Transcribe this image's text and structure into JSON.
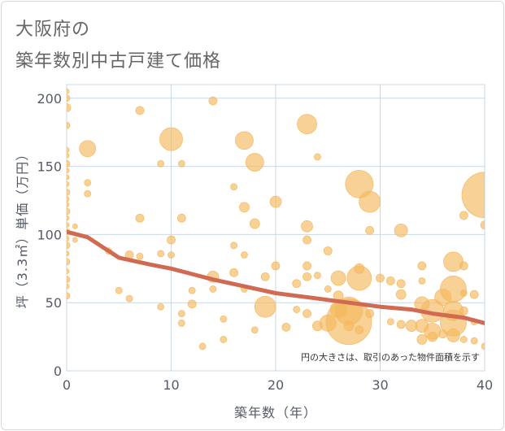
{
  "title": {
    "line1": "大阪府の",
    "line2": "築年数別中古戸建て価格"
  },
  "note": "円の大きさは、取引のあった物件面積を示す",
  "colors": {
    "bubble": "#f5b95e",
    "trend": "#d06a52",
    "grid": "#c9d9e6",
    "plot_bg": "#ffffff"
  },
  "chart_data": {
    "type": "scatter",
    "xlabel": "築年数（年）",
    "ylabel": "坪（3.3㎡）単価（万円）",
    "xlim": [
      0,
      40
    ],
    "ylim": [
      0,
      210
    ],
    "xticks": [
      0,
      10,
      20,
      30,
      40
    ],
    "yticks": [
      0,
      50,
      100,
      150,
      200
    ],
    "grid": true,
    "points": [
      {
        "x": 0,
        "y": 205,
        "size": 3
      },
      {
        "x": 0,
        "y": 200,
        "size": 4
      },
      {
        "x": 0,
        "y": 193,
        "size": 5
      },
      {
        "x": 0,
        "y": 180,
        "size": 4
      },
      {
        "x": 0,
        "y": 162,
        "size": 3
      },
      {
        "x": 0,
        "y": 158,
        "size": 3
      },
      {
        "x": 0,
        "y": 152,
        "size": 4
      },
      {
        "x": 0,
        "y": 147,
        "size": 3
      },
      {
        "x": 0,
        "y": 142,
        "size": 3
      },
      {
        "x": 0,
        "y": 137,
        "size": 3
      },
      {
        "x": 0,
        "y": 131,
        "size": 4
      },
      {
        "x": 0,
        "y": 126,
        "size": 3
      },
      {
        "x": 0,
        "y": 122,
        "size": 3
      },
      {
        "x": 0,
        "y": 117,
        "size": 4
      },
      {
        "x": 0,
        "y": 112,
        "size": 3
      },
      {
        "x": 0,
        "y": 107,
        "size": 3
      },
      {
        "x": 0,
        "y": 102,
        "size": 4
      },
      {
        "x": 0,
        "y": 97,
        "size": 3
      },
      {
        "x": 0,
        "y": 92,
        "size": 4
      },
      {
        "x": 0,
        "y": 86,
        "size": 3
      },
      {
        "x": 0,
        "y": 80,
        "size": 4
      },
      {
        "x": 0,
        "y": 73,
        "size": 3
      },
      {
        "x": 0,
        "y": 67,
        "size": 4
      },
      {
        "x": 0,
        "y": 62,
        "size": 3
      },
      {
        "x": 0,
        "y": 55,
        "size": 4
      },
      {
        "x": 0.8,
        "y": 106,
        "size": 3
      },
      {
        "x": 0.8,
        "y": 96,
        "size": 3
      },
      {
        "x": 2,
        "y": 163,
        "size": 10
      },
      {
        "x": 2,
        "y": 138,
        "size": 4
      },
      {
        "x": 2,
        "y": 130,
        "size": 4
      },
      {
        "x": 4,
        "y": 88,
        "size": 4
      },
      {
        "x": 5,
        "y": 59,
        "size": 4
      },
      {
        "x": 6,
        "y": 85,
        "size": 5
      },
      {
        "x": 6,
        "y": 53,
        "size": 4
      },
      {
        "x": 7,
        "y": 191,
        "size": 5
      },
      {
        "x": 7,
        "y": 112,
        "size": 5
      },
      {
        "x": 7,
        "y": 84,
        "size": 4
      },
      {
        "x": 9,
        "y": 152,
        "size": 4
      },
      {
        "x": 9,
        "y": 86,
        "size": 4
      },
      {
        "x": 9,
        "y": 47,
        "size": 4
      },
      {
        "x": 10,
        "y": 170,
        "size": 14
      },
      {
        "x": 10,
        "y": 96,
        "size": 5
      },
      {
        "x": 10,
        "y": 85,
        "size": 4
      },
      {
        "x": 11,
        "y": 152,
        "size": 4
      },
      {
        "x": 11,
        "y": 112,
        "size": 5
      },
      {
        "x": 11,
        "y": 42,
        "size": 4
      },
      {
        "x": 11,
        "y": 35,
        "size": 4
      },
      {
        "x": 12,
        "y": 59,
        "size": 4
      },
      {
        "x": 12,
        "y": 49,
        "size": 5
      },
      {
        "x": 13,
        "y": 18,
        "size": 4
      },
      {
        "x": 14,
        "y": 198,
        "size": 5
      },
      {
        "x": 14,
        "y": 69,
        "size": 7
      },
      {
        "x": 14,
        "y": 60,
        "size": 4
      },
      {
        "x": 15,
        "y": 38,
        "size": 4
      },
      {
        "x": 15,
        "y": 23,
        "size": 4
      },
      {
        "x": 16,
        "y": 135,
        "size": 4
      },
      {
        "x": 16,
        "y": 92,
        "size": 4
      },
      {
        "x": 16,
        "y": 72,
        "size": 5
      },
      {
        "x": 17,
        "y": 169,
        "size": 11
      },
      {
        "x": 17,
        "y": 120,
        "size": 6
      },
      {
        "x": 17,
        "y": 85,
        "size": 4
      },
      {
        "x": 17,
        "y": 60,
        "size": 4
      },
      {
        "x": 18,
        "y": 153,
        "size": 11
      },
      {
        "x": 18,
        "y": 108,
        "size": 6
      },
      {
        "x": 18,
        "y": 30,
        "size": 4
      },
      {
        "x": 19,
        "y": 69,
        "size": 5
      },
      {
        "x": 19,
        "y": 47,
        "size": 13
      },
      {
        "x": 20,
        "y": 124,
        "size": 7
      },
      {
        "x": 20,
        "y": 77,
        "size": 5
      },
      {
        "x": 21,
        "y": 32,
        "size": 5
      },
      {
        "x": 22,
        "y": 64,
        "size": 5
      },
      {
        "x": 22,
        "y": 45,
        "size": 4
      },
      {
        "x": 23,
        "y": 181,
        "size": 12
      },
      {
        "x": 23,
        "y": 106,
        "size": 7
      },
      {
        "x": 23,
        "y": 96,
        "size": 5
      },
      {
        "x": 23,
        "y": 77,
        "size": 5
      },
      {
        "x": 23,
        "y": 69,
        "size": 5
      },
      {
        "x": 23,
        "y": 42,
        "size": 5
      },
      {
        "x": 24,
        "y": 157,
        "size": 4
      },
      {
        "x": 24,
        "y": 70,
        "size": 4
      },
      {
        "x": 24,
        "y": 33,
        "size": 6
      },
      {
        "x": 25,
        "y": 88,
        "size": 5
      },
      {
        "x": 25,
        "y": 60,
        "size": 4
      },
      {
        "x": 25,
        "y": 35,
        "size": 10
      },
      {
        "x": 26,
        "y": 68,
        "size": 9
      },
      {
        "x": 26,
        "y": 55,
        "size": 6
      },
      {
        "x": 26,
        "y": 45,
        "size": 10
      },
      {
        "x": 27,
        "y": 44,
        "size": 17
      },
      {
        "x": 27,
        "y": 36,
        "size": 28
      },
      {
        "x": 27,
        "y": 33,
        "size": 6
      },
      {
        "x": 28,
        "y": 137,
        "size": 17
      },
      {
        "x": 28,
        "y": 75,
        "size": 6
      },
      {
        "x": 28,
        "y": 68,
        "size": 15
      },
      {
        "x": 28,
        "y": 30,
        "size": 5
      },
      {
        "x": 29,
        "y": 124,
        "size": 13
      },
      {
        "x": 29,
        "y": 103,
        "size": 5
      },
      {
        "x": 29,
        "y": 42,
        "size": 5
      },
      {
        "x": 30,
        "y": 68,
        "size": 5
      },
      {
        "x": 31,
        "y": 66,
        "size": 5
      },
      {
        "x": 31,
        "y": 36,
        "size": 4
      },
      {
        "x": 32,
        "y": 103,
        "size": 8
      },
      {
        "x": 32,
        "y": 64,
        "size": 5
      },
      {
        "x": 32,
        "y": 56,
        "size": 6
      },
      {
        "x": 32,
        "y": 34,
        "size": 5
      },
      {
        "x": 33,
        "y": 33,
        "size": 7
      },
      {
        "x": 34,
        "y": 77,
        "size": 5
      },
      {
        "x": 34,
        "y": 66,
        "size": 4
      },
      {
        "x": 34,
        "y": 49,
        "size": 9
      },
      {
        "x": 34,
        "y": 33,
        "size": 8
      },
      {
        "x": 34,
        "y": 23,
        "size": 6
      },
      {
        "x": 35,
        "y": 44,
        "size": 14
      },
      {
        "x": 35,
        "y": 29,
        "size": 10
      },
      {
        "x": 35,
        "y": 25,
        "size": 6
      },
      {
        "x": 36,
        "y": 54,
        "size": 10
      },
      {
        "x": 36,
        "y": 27,
        "size": 5
      },
      {
        "x": 37,
        "y": 80,
        "size": 12
      },
      {
        "x": 37,
        "y": 60,
        "size": 16
      },
      {
        "x": 37,
        "y": 44,
        "size": 12
      },
      {
        "x": 37,
        "y": 35,
        "size": 16
      },
      {
        "x": 37,
        "y": 26,
        "size": 8
      },
      {
        "x": 38,
        "y": 114,
        "size": 5
      },
      {
        "x": 38,
        "y": 77,
        "size": 5
      },
      {
        "x": 38,
        "y": 57,
        "size": 4
      },
      {
        "x": 38,
        "y": 44,
        "size": 5
      },
      {
        "x": 38,
        "y": 23,
        "size": 4
      },
      {
        "x": 39,
        "y": 56,
        "size": 5
      },
      {
        "x": 39,
        "y": 36,
        "size": 4
      },
      {
        "x": 39,
        "y": 22,
        "size": 4
      },
      {
        "x": 40,
        "y": 129,
        "size": 28
      },
      {
        "x": 40,
        "y": 107,
        "size": 5
      },
      {
        "x": 40,
        "y": 18,
        "size": 4
      }
    ],
    "trend": {
      "x": [
        0,
        2,
        4,
        5,
        8,
        10,
        12,
        14,
        17,
        20,
        22,
        25,
        27,
        30,
        33,
        35,
        38,
        40
      ],
      "y": [
        102,
        98,
        88,
        83,
        78,
        75,
        71,
        67,
        62,
        57,
        55,
        52,
        50,
        47,
        45,
        42,
        39,
        35
      ]
    }
  }
}
